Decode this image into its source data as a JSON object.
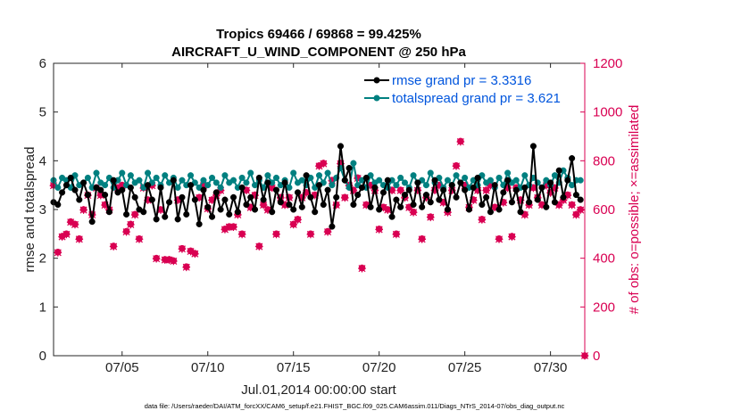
{
  "colors": {
    "rmse": "#000000",
    "spread": "#008080",
    "obs": "#D90052",
    "legend_text": "#0055DD",
    "axis": "#262626"
  },
  "footnote": "data file: /Users/raeder/DAI/ATM_forcXX/CAM6_setup/f.e21.FHIST_BGC.f09_025.CAM6assim.011/Diags_NTrS_2014-07/obs_diag_output.nc",
  "chart_data": {
    "type": "line",
    "title": "Tropics 69466 / 69868 = 99.425%",
    "subtitle": "AIRCRAFT_U_WIND_COMPONENT @ 250 hPa",
    "xlabel": "Jul.01,2014 00:00:00 start",
    "ylabel": "rmse and totalspread",
    "ylabel_right": "# of obs: o=possible; ×=assimilated",
    "xlim": [
      1.0,
      32.0
    ],
    "ylim": [
      0,
      6
    ],
    "ylim_right": [
      0,
      1200
    ],
    "x_ticks": [
      5,
      10,
      15,
      20,
      25,
      30
    ],
    "x_tick_labels": [
      "07/05",
      "07/10",
      "07/15",
      "07/20",
      "07/25",
      "07/30"
    ],
    "y_ticks": [
      0,
      1,
      2,
      3,
      4,
      5,
      6
    ],
    "y_tick_labels": [
      "0",
      "1",
      "2",
      "3",
      "4",
      "5",
      "6"
    ],
    "y_right_ticks": [
      0,
      200,
      400,
      600,
      800,
      1000,
      1200
    ],
    "y_right_tick_labels": [
      "0",
      "200",
      "400",
      "600",
      "800",
      "1000",
      "1200"
    ],
    "legend_position": "top-right",
    "series": [
      {
        "name": "rmse grand pr = 3.3316",
        "axis": "left",
        "style": "line-dot",
        "x": [
          1.0,
          1.25,
          1.5,
          1.75,
          2.0,
          2.25,
          2.5,
          2.75,
          3.0,
          3.25,
          3.5,
          3.75,
          4.0,
          4.25,
          4.5,
          4.75,
          5.0,
          5.25,
          5.5,
          5.75,
          6.0,
          6.25,
          6.5,
          6.75,
          7.0,
          7.25,
          7.5,
          7.75,
          8.0,
          8.25,
          8.5,
          8.75,
          9.0,
          9.25,
          9.5,
          9.75,
          10.0,
          10.25,
          10.5,
          10.75,
          11.0,
          11.25,
          11.5,
          11.75,
          12.0,
          12.25,
          12.5,
          12.75,
          13.0,
          13.25,
          13.5,
          13.75,
          14.0,
          14.25,
          14.5,
          14.75,
          15.0,
          15.25,
          15.5,
          15.75,
          16.0,
          16.25,
          16.5,
          16.75,
          17.0,
          17.25,
          17.5,
          17.75,
          18.0,
          18.25,
          18.5,
          18.75,
          19.0,
          19.25,
          19.5,
          19.75,
          20.0,
          20.25,
          20.5,
          20.75,
          21.0,
          21.25,
          21.5,
          21.75,
          22.0,
          22.25,
          22.5,
          22.75,
          23.0,
          23.25,
          23.5,
          23.75,
          24.0,
          24.25,
          24.5,
          24.75,
          25.0,
          25.25,
          25.5,
          25.75,
          26.0,
          26.25,
          26.5,
          26.75,
          27.0,
          27.25,
          27.5,
          27.75,
          28.0,
          28.25,
          28.5,
          28.75,
          29.0,
          29.25,
          29.5,
          29.75,
          30.0,
          30.25,
          30.5,
          30.75,
          31.0,
          31.25,
          31.5,
          31.75
        ],
        "values": [
          3.15,
          3.1,
          3.35,
          3.5,
          3.65,
          3.4,
          3.2,
          3.55,
          3.3,
          2.75,
          3.45,
          3.4,
          3.3,
          2.95,
          3.6,
          3.35,
          3.4,
          2.9,
          3.45,
          3.25,
          3.0,
          2.95,
          3.5,
          3.2,
          2.8,
          3.45,
          2.85,
          3.15,
          3.6,
          2.8,
          3.25,
          2.9,
          3.5,
          3.2,
          2.7,
          3.4,
          3.05,
          2.85,
          3.35,
          3.0,
          3.2,
          2.9,
          3.25,
          2.95,
          3.45,
          3.1,
          3.25,
          3.0,
          3.65,
          3.2,
          3.55,
          2.95,
          3.4,
          3.15,
          3.55,
          3.1,
          3.0,
          3.35,
          3.05,
          3.7,
          3.25,
          2.95,
          3.5,
          3.1,
          3.4,
          2.65,
          3.25,
          4.3,
          3.6,
          3.85,
          3.1,
          3.3,
          3.45,
          3.65,
          3.05,
          3.45,
          3.0,
          3.35,
          3.6,
          2.85,
          3.2,
          3.05,
          3.3,
          3.4,
          3.1,
          3.55,
          3.05,
          3.3,
          3.15,
          3.6,
          3.2,
          3.4,
          3.0,
          3.5,
          3.25,
          3.55,
          3.4,
          3.0,
          3.45,
          3.65,
          3.1,
          3.25,
          2.95,
          3.5,
          3.0,
          3.35,
          3.6,
          3.15,
          3.4,
          2.95,
          3.45,
          3.15,
          4.3,
          3.2,
          3.45,
          3.05,
          3.55,
          3.15,
          3.8,
          3.25,
          3.6,
          4.05,
          3.3,
          3.2
        ]
      },
      {
        "name": "totalspread grand pr = 3.621",
        "axis": "left",
        "style": "line-dot",
        "x": [
          1.0,
          1.25,
          1.5,
          1.75,
          2.0,
          2.25,
          2.5,
          2.75,
          3.0,
          3.25,
          3.5,
          3.75,
          4.0,
          4.25,
          4.5,
          4.75,
          5.0,
          5.25,
          5.5,
          5.75,
          6.0,
          6.25,
          6.5,
          6.75,
          7.0,
          7.25,
          7.5,
          7.75,
          8.0,
          8.25,
          8.5,
          8.75,
          9.0,
          9.25,
          9.5,
          9.75,
          10.0,
          10.25,
          10.5,
          10.75,
          11.0,
          11.25,
          11.5,
          11.75,
          12.0,
          12.25,
          12.5,
          12.75,
          13.0,
          13.25,
          13.5,
          13.75,
          14.0,
          14.25,
          14.5,
          14.75,
          15.0,
          15.25,
          15.5,
          15.75,
          16.0,
          16.25,
          16.5,
          16.75,
          17.0,
          17.25,
          17.5,
          17.75,
          18.0,
          18.25,
          18.5,
          18.75,
          19.0,
          19.25,
          19.5,
          19.75,
          20.0,
          20.25,
          20.5,
          20.75,
          21.0,
          21.25,
          21.5,
          21.75,
          22.0,
          22.25,
          22.5,
          22.75,
          23.0,
          23.25,
          23.5,
          23.75,
          24.0,
          24.25,
          24.5,
          24.75,
          25.0,
          25.25,
          25.5,
          25.75,
          26.0,
          26.25,
          26.5,
          26.75,
          27.0,
          27.25,
          27.5,
          27.75,
          28.0,
          28.25,
          28.5,
          28.75,
          29.0,
          29.25,
          29.5,
          29.75,
          30.0,
          30.25,
          30.5,
          30.75,
          31.0,
          31.25,
          31.5,
          31.75
        ],
        "values": [
          3.6,
          3.45,
          3.65,
          3.6,
          3.45,
          3.7,
          3.5,
          3.55,
          3.65,
          3.45,
          3.75,
          3.55,
          3.5,
          3.65,
          3.45,
          3.6,
          3.75,
          3.5,
          3.7,
          3.55,
          3.6,
          3.45,
          3.75,
          3.55,
          3.65,
          3.5,
          3.7,
          3.55,
          3.65,
          3.45,
          3.6,
          3.5,
          3.7,
          3.55,
          3.45,
          3.6,
          3.5,
          3.65,
          3.55,
          3.45,
          3.7,
          3.55,
          3.6,
          3.45,
          3.65,
          3.55,
          3.75,
          3.5,
          3.6,
          3.45,
          3.7,
          3.55,
          3.65,
          3.5,
          3.6,
          3.45,
          3.75,
          3.55,
          3.6,
          3.5,
          3.65,
          3.45,
          3.7,
          3.55,
          3.75,
          3.5,
          3.65,
          3.85,
          3.6,
          3.45,
          3.95,
          3.5,
          3.6,
          3.45,
          3.7,
          3.55,
          3.6,
          3.5,
          3.45,
          3.6,
          3.5,
          3.65,
          3.55,
          3.45,
          3.7,
          3.55,
          3.6,
          3.5,
          3.75,
          3.55,
          3.65,
          3.45,
          3.6,
          3.5,
          3.7,
          3.55,
          3.65,
          3.45,
          3.6,
          3.5,
          3.7,
          3.55,
          3.6,
          3.45,
          3.65,
          3.5,
          3.75,
          3.55,
          3.6,
          3.45,
          3.7,
          3.5,
          3.65,
          3.55,
          3.45,
          3.6,
          3.5,
          3.7,
          3.55,
          3.8,
          3.65,
          3.5,
          3.6,
          3.6
        ]
      },
      {
        "name": "obs possible",
        "axis": "right",
        "style": "circle",
        "x": [
          1.0,
          1.25,
          1.5,
          1.75,
          2.0,
          2.25,
          2.5,
          2.75,
          3.0,
          3.25,
          3.5,
          3.75,
          4.0,
          4.25,
          4.5,
          4.75,
          5.0,
          5.25,
          5.5,
          5.75,
          6.0,
          6.25,
          6.5,
          6.75,
          7.0,
          7.25,
          7.5,
          7.75,
          8.0,
          8.25,
          8.5,
          8.75,
          9.0,
          9.25,
          9.5,
          9.75,
          10.0,
          10.25,
          10.5,
          10.75,
          11.0,
          11.25,
          11.5,
          11.75,
          12.0,
          12.25,
          12.5,
          12.75,
          13.0,
          13.25,
          13.5,
          13.75,
          14.0,
          14.25,
          14.5,
          14.75,
          15.0,
          15.25,
          15.5,
          15.75,
          16.0,
          16.25,
          16.5,
          16.75,
          17.0,
          17.25,
          17.5,
          17.75,
          18.0,
          18.25,
          18.5,
          18.75,
          19.0,
          19.25,
          19.5,
          19.75,
          20.0,
          20.25,
          20.5,
          20.75,
          21.0,
          21.25,
          21.5,
          21.75,
          22.0,
          22.25,
          22.5,
          22.75,
          23.0,
          23.25,
          23.5,
          23.75,
          24.0,
          24.25,
          24.5,
          24.75,
          25.0,
          25.25,
          25.5,
          25.75,
          26.0,
          26.25,
          26.5,
          26.75,
          27.0,
          27.25,
          27.5,
          27.75,
          28.0,
          28.25,
          28.5,
          28.75,
          29.0,
          29.25,
          29.5,
          29.75,
          30.0,
          30.25,
          30.5,
          30.75,
          31.0,
          31.25,
          31.5,
          31.75,
          32.0
        ],
        "values": [
          700,
          425,
          490,
          500,
          550,
          540,
          480,
          600,
          660,
          580,
          690,
          660,
          620,
          600,
          450,
          690,
          700,
          510,
          540,
          580,
          480,
          690,
          640,
          700,
          400,
          600,
          395,
          395,
          390,
          640,
          440,
          365,
          430,
          420,
          650,
          700,
          605,
          640,
          660,
          680,
          520,
          530,
          530,
          580,
          500,
          680,
          610,
          660,
          450,
          620,
          600,
          690,
          500,
          650,
          620,
          650,
          540,
          560,
          650,
          670,
          500,
          660,
          780,
          790,
          510,
          720,
          620,
          790,
          650,
          700,
          680,
          730,
          360,
          620,
          700,
          680,
          520,
          610,
          600,
          680,
          500,
          680,
          650,
          610,
          590,
          680,
          480,
          650,
          570,
          680,
          700,
          630,
          590,
          680,
          780,
          880,
          700,
          610,
          640,
          680,
          560,
          680,
          700,
          610,
          480,
          630,
          690,
          490,
          690,
          640,
          580,
          620,
          690,
          650,
          620,
          700,
          670,
          690,
          620,
          640,
          660,
          620,
          580,
          600,
          0
        ]
      },
      {
        "name": "obs assimilated",
        "axis": "right",
        "style": "cross",
        "x": [
          1.0,
          1.25,
          1.5,
          1.75,
          2.0,
          2.25,
          2.5,
          2.75,
          3.0,
          3.25,
          3.5,
          3.75,
          4.0,
          4.25,
          4.5,
          4.75,
          5.0,
          5.25,
          5.5,
          5.75,
          6.0,
          6.25,
          6.5,
          6.75,
          7.0,
          7.25,
          7.5,
          7.75,
          8.0,
          8.25,
          8.5,
          8.75,
          9.0,
          9.25,
          9.5,
          9.75,
          10.0,
          10.25,
          10.5,
          10.75,
          11.0,
          11.25,
          11.5,
          11.75,
          12.0,
          12.25,
          12.5,
          12.75,
          13.0,
          13.25,
          13.5,
          13.75,
          14.0,
          14.25,
          14.5,
          14.75,
          15.0,
          15.25,
          15.5,
          15.75,
          16.0,
          16.25,
          16.5,
          16.75,
          17.0,
          17.25,
          17.5,
          17.75,
          18.0,
          18.25,
          18.5,
          18.75,
          19.0,
          19.25,
          19.5,
          19.75,
          20.0,
          20.25,
          20.5,
          20.75,
          21.0,
          21.25,
          21.5,
          21.75,
          22.0,
          22.25,
          22.5,
          22.75,
          23.0,
          23.25,
          23.5,
          23.75,
          24.0,
          24.25,
          24.5,
          24.75,
          25.0,
          25.25,
          25.5,
          25.75,
          26.0,
          26.25,
          26.5,
          26.75,
          27.0,
          27.25,
          27.5,
          27.75,
          28.0,
          28.25,
          28.5,
          28.75,
          29.0,
          29.25,
          29.5,
          29.75,
          30.0,
          30.25,
          30.5,
          30.75,
          31.0,
          31.25,
          31.5,
          31.75,
          32.0
        ],
        "values": [
          698,
          423,
          488,
          498,
          548,
          538,
          478,
          598,
          658,
          578,
          688,
          658,
          618,
          598,
          448,
          688,
          698,
          508,
          538,
          578,
          478,
          688,
          638,
          698,
          398,
          598,
          393,
          393,
          388,
          638,
          438,
          363,
          428,
          418,
          648,
          698,
          603,
          638,
          658,
          678,
          518,
          528,
          528,
          578,
          498,
          678,
          608,
          658,
          448,
          618,
          598,
          688,
          498,
          648,
          618,
          648,
          538,
          558,
          648,
          668,
          498,
          658,
          778,
          788,
          508,
          718,
          618,
          788,
          648,
          698,
          678,
          728,
          358,
          618,
          698,
          678,
          518,
          608,
          598,
          678,
          498,
          678,
          648,
          608,
          588,
          678,
          478,
          648,
          568,
          678,
          698,
          628,
          588,
          678,
          778,
          878,
          698,
          608,
          638,
          678,
          558,
          678,
          698,
          608,
          478,
          628,
          688,
          488,
          688,
          638,
          578,
          618,
          688,
          648,
          618,
          698,
          668,
          688,
          618,
          638,
          658,
          618,
          578,
          598,
          0
        ]
      }
    ]
  }
}
